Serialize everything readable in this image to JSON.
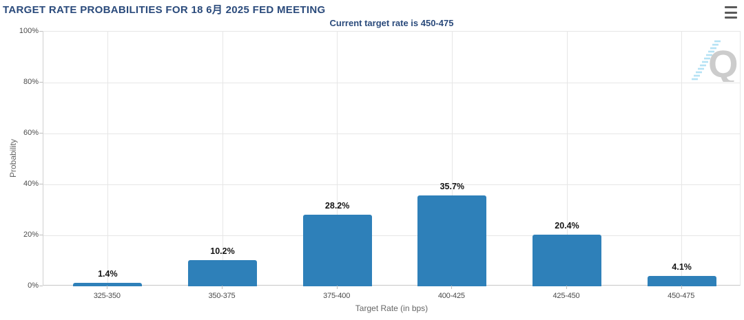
{
  "header": {
    "title": "TARGET RATE PROBABILITIES FOR 18 6月 2025 FED MEETING",
    "menu_icon": "hamburger-menu-icon"
  },
  "chart_data": {
    "type": "bar",
    "title": "TARGET RATE PROBABILITIES FOR 18 6月 2025 FED MEETING",
    "subtitle": "Current target rate is 450-475",
    "categories": [
      "325-350",
      "350-375",
      "375-400",
      "400-425",
      "425-450",
      "450-475"
    ],
    "values": [
      1.4,
      10.2,
      28.2,
      35.7,
      20.4,
      4.1
    ],
    "data_labels": [
      "1.4%",
      "10.2%",
      "28.2%",
      "35.7%",
      "20.4%",
      "4.1%"
    ],
    "xlabel": "Target Rate (in bps)",
    "ylabel": "Probability",
    "ylim": [
      0,
      100
    ],
    "yticks": [
      0,
      20,
      40,
      60,
      80,
      100
    ],
    "ytick_labels": [
      "0%",
      "20%",
      "40%",
      "60%",
      "80%",
      "100%"
    ],
    "grid": true,
    "legend": "none",
    "watermark_letter": "Q"
  },
  "colors": {
    "title": "#2a4a7b",
    "subtitle": "#2a4a7b",
    "bar": "#2e80b9",
    "grid": "#e6e6e6",
    "menu_icon": "#5a5a5a",
    "watermark_gray": "#cccccc",
    "watermark_blue": "#b5e2f4"
  }
}
